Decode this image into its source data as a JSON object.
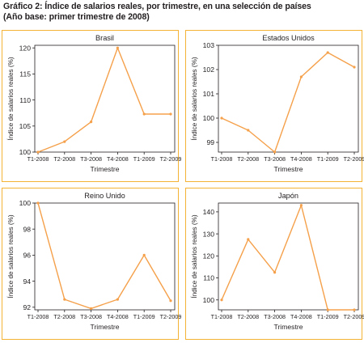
{
  "figure": {
    "title_line1": "Gráfico 2:  Índice de salarios reales, por trimestre, en una selección de países",
    "title_line2": "(Año base: primer trimestre de 2008)"
  },
  "colors": {
    "line": "#f5a04a",
    "border": "#f5b335",
    "axis": "#231f20"
  },
  "chart_data": [
    {
      "type": "line",
      "title": "Brasil",
      "xlabel": "Trimestre",
      "ylabel": "Índice de salarios reales (%)",
      "categories": [
        "T1-2008",
        "T2-2008",
        "T3-2008",
        "T4-2008",
        "T1-2009",
        "T2-2009"
      ],
      "values": [
        100,
        102,
        105.8,
        120,
        107.3,
        107.3
      ],
      "ylim": [
        100,
        120.5
      ],
      "yticks": [
        100,
        105,
        110,
        115,
        120
      ],
      "ytick_labels": [
        "100",
        "105",
        "110",
        "115",
        "120"
      ]
    },
    {
      "type": "line",
      "title": "Estados Unidos",
      "xlabel": "Trimestre",
      "ylabel": "Índice de salarios reales (%)",
      "categories": [
        "T1-2008",
        "T2-2008",
        "T3-2008",
        "T4-2008",
        "T1-2009",
        "T2-2009"
      ],
      "values": [
        100,
        99.5,
        98.6,
        101.7,
        102.7,
        102.1
      ],
      "ylim": [
        98.6,
        103
      ],
      "yticks": [
        99,
        100,
        101,
        102,
        103
      ],
      "ytick_labels": [
        "99",
        "100",
        "101",
        "102",
        "103"
      ]
    },
    {
      "type": "line",
      "title": "Reino Unido",
      "xlabel": "Trimestre",
      "ylabel": "Índice de salarios reales (%)",
      "categories": [
        "T1-2008",
        "T2-2008",
        "T3-2008",
        "T4-2008",
        "T1-2009",
        "T2-2009"
      ],
      "values": [
        100,
        92.6,
        91.9,
        92.6,
        96,
        92.5
      ],
      "ylim": [
        91.8,
        100
      ],
      "yticks": [
        92,
        94,
        96,
        98,
        100
      ],
      "ytick_labels": [
        "92",
        "94",
        "96",
        "98",
        "100"
      ]
    },
    {
      "type": "line",
      "title": "Japón",
      "xlabel": "Trimestre",
      "ylabel": "Índice de salarios reales (%)",
      "categories": [
        "T1-2008",
        "T2-2008",
        "T3-2008",
        "T4-2008",
        "T1-2009",
        "T2-2009"
      ],
      "values": [
        100,
        127.5,
        112.5,
        143,
        95.5,
        95.5
      ],
      "ylim": [
        95.5,
        144
      ],
      "yticks": [
        100,
        110,
        120,
        130,
        140
      ],
      "ytick_labels": [
        "100",
        "110",
        "120",
        "130",
        "140"
      ]
    }
  ]
}
